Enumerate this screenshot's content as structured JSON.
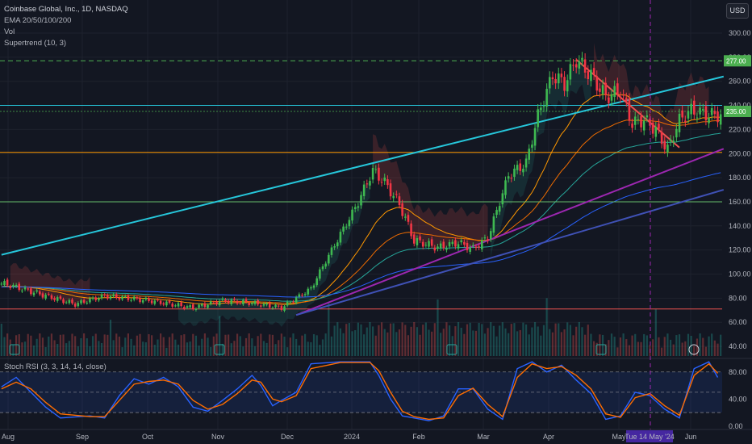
{
  "header": {
    "symbol_line": "Coinbase Global, Inc., 1D, NASDAQ",
    "indicators": [
      "EMA 20/50/100/200",
      "Vol",
      "Supertrend (10, 3)"
    ],
    "currency": "USD"
  },
  "rsi_panel": {
    "title": "Stoch RSI (3, 3, 14, 14, close)",
    "ticks": [
      "80.00",
      "40.00",
      "0.00"
    ]
  },
  "crosshair_label": "Tue 14 May '24",
  "price_tags": [
    "277.00",
    "235.00"
  ],
  "colors": {
    "up": "#26a69a",
    "down": "#ef5350",
    "candle_up": "#3fb950",
    "candle_down": "#f23645",
    "teal_line": "#26c6da",
    "purple_line": "#9c27b0",
    "navy_line": "#3f51b5",
    "resistance": "#4caf50",
    "support_orange": "#ff9800",
    "support_green": "#66bb6a",
    "red_level": "#ef5350",
    "stoch_k": "#2962ff",
    "stoch_d": "#ff6d00"
  },
  "chart_data": {
    "type": "candlestick",
    "symbol": "Coinbase Global, Inc.",
    "interval": "1D",
    "exchange": "NASDAQ",
    "x_ticks": [
      "Aug",
      "Sep",
      "Oct",
      "Nov",
      "Dec",
      "2024",
      "Feb",
      "Mar",
      "Apr",
      "May",
      "Jun"
    ],
    "y_ticks": [
      300,
      280,
      260,
      240,
      220,
      200,
      180,
      160,
      140,
      120,
      100,
      80,
      60,
      40
    ],
    "ylim": [
      32,
      310
    ],
    "key_prices": [
      [
        1,
        92
      ],
      [
        15,
        82
      ],
      [
        25,
        75
      ],
      [
        35,
        82
      ],
      [
        50,
        78
      ],
      [
        65,
        72
      ],
      [
        75,
        78
      ],
      [
        85,
        76
      ],
      [
        95,
        72
      ],
      [
        105,
        88
      ],
      [
        112,
        120
      ],
      [
        120,
        155
      ],
      [
        126,
        186
      ],
      [
        130,
        176
      ],
      [
        135,
        158
      ],
      [
        140,
        128
      ],
      [
        148,
        122
      ],
      [
        155,
        126
      ],
      [
        160,
        121
      ],
      [
        165,
        130
      ],
      [
        172,
        182
      ],
      [
        178,
        192
      ],
      [
        182,
        232
      ],
      [
        187,
        265
      ],
      [
        191,
        258
      ],
      [
        195,
        278
      ],
      [
        200,
        265
      ],
      [
        205,
        247
      ],
      [
        210,
        252
      ],
      [
        214,
        225
      ],
      [
        218,
        228
      ],
      [
        222,
        220
      ],
      [
        226,
        203
      ],
      [
        230,
        228
      ],
      [
        234,
        236
      ],
      [
        240,
        232
      ]
    ],
    "levels": [
      {
        "price": 277,
        "style": "dashed",
        "color": "resistance"
      },
      {
        "price": 240,
        "style": "solid",
        "color": "teal_line"
      },
      {
        "price": 201,
        "style": "solid",
        "color": "support_orange"
      },
      {
        "price": 160,
        "style": "solid",
        "color": "support_green"
      },
      {
        "price": 71,
        "style": "solid",
        "color": "red_level"
      }
    ],
    "trendlines": [
      {
        "from": [
          0,
          116
        ],
        "to": [
          245,
          264
        ],
        "color": "teal_line"
      },
      {
        "from": [
          100,
          66
        ],
        "to": [
          245,
          204
        ],
        "color": "purple_line"
      },
      {
        "from": [
          100,
          66
        ],
        "to": [
          245,
          170
        ],
        "color": "navy_line"
      },
      {
        "from": [
          195,
          278
        ],
        "to": [
          230,
          205
        ],
        "color": "down"
      }
    ],
    "stoch_rsi": {
      "k": [
        [
          0,
          58
        ],
        [
          5,
          72
        ],
        [
          10,
          50
        ],
        [
          15,
          28
        ],
        [
          20,
          12
        ],
        [
          30,
          15
        ],
        [
          35,
          12
        ],
        [
          40,
          45
        ],
        [
          45,
          70
        ],
        [
          50,
          62
        ],
        [
          55,
          72
        ],
        [
          60,
          58
        ],
        [
          65,
          28
        ],
        [
          70,
          22
        ],
        [
          75,
          38
        ],
        [
          80,
          55
        ],
        [
          85,
          75
        ],
        [
          88,
          60
        ],
        [
          92,
          30
        ],
        [
          95,
          38
        ],
        [
          100,
          50
        ],
        [
          105,
          92
        ],
        [
          115,
          95
        ],
        [
          125,
          95
        ],
        [
          128,
          75
        ],
        [
          132,
          40
        ],
        [
          136,
          15
        ],
        [
          140,
          12
        ],
        [
          145,
          8
        ],
        [
          150,
          15
        ],
        [
          155,
          55
        ],
        [
          160,
          55
        ],
        [
          165,
          25
        ],
        [
          170,
          10
        ],
        [
          175,
          85
        ],
        [
          180,
          95
        ],
        [
          185,
          80
        ],
        [
          190,
          90
        ],
        [
          195,
          68
        ],
        [
          200,
          48
        ],
        [
          205,
          10
        ],
        [
          210,
          15
        ],
        [
          215,
          50
        ],
        [
          220,
          45
        ],
        [
          225,
          25
        ],
        [
          230,
          12
        ],
        [
          235,
          85
        ],
        [
          240,
          95
        ],
        [
          243,
          72
        ]
      ],
      "d": [
        [
          0,
          55
        ],
        [
          5,
          65
        ],
        [
          10,
          55
        ],
        [
          15,
          35
        ],
        [
          20,
          18
        ],
        [
          30,
          14
        ],
        [
          35,
          14
        ],
        [
          40,
          38
        ],
        [
          45,
          62
        ],
        [
          50,
          66
        ],
        [
          55,
          68
        ],
        [
          60,
          62
        ],
        [
          65,
          38
        ],
        [
          70,
          25
        ],
        [
          75,
          32
        ],
        [
          80,
          48
        ],
        [
          85,
          68
        ],
        [
          88,
          65
        ],
        [
          92,
          40
        ],
        [
          95,
          36
        ],
        [
          100,
          45
        ],
        [
          105,
          85
        ],
        [
          115,
          94
        ],
        [
          125,
          94
        ],
        [
          128,
          82
        ],
        [
          132,
          50
        ],
        [
          136,
          22
        ],
        [
          140,
          14
        ],
        [
          145,
          10
        ],
        [
          150,
          12
        ],
        [
          155,
          45
        ],
        [
          160,
          56
        ],
        [
          165,
          32
        ],
        [
          170,
          14
        ],
        [
          175,
          72
        ],
        [
          180,
          92
        ],
        [
          185,
          85
        ],
        [
          190,
          88
        ],
        [
          195,
          75
        ],
        [
          200,
          55
        ],
        [
          205,
          18
        ],
        [
          210,
          13
        ],
        [
          215,
          42
        ],
        [
          220,
          48
        ],
        [
          225,
          30
        ],
        [
          230,
          16
        ],
        [
          235,
          75
        ],
        [
          240,
          92
        ],
        [
          243,
          78
        ]
      ],
      "levels": [
        80,
        50,
        20
      ],
      "ylim": [
        -5,
        100
      ]
    }
  }
}
